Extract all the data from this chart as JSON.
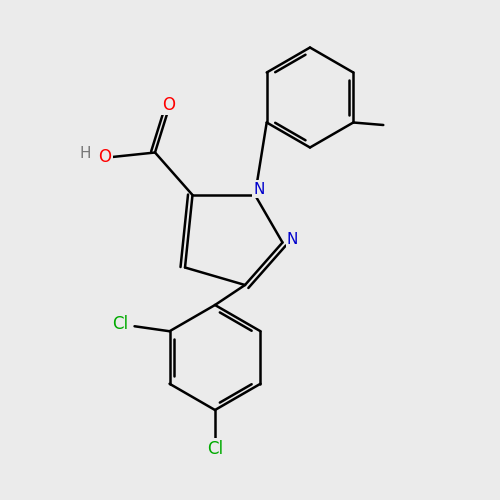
{
  "bg_color": "#ebebeb",
  "bond_color": "#000000",
  "bond_width": 1.8,
  "n_color": "#0000cc",
  "o_color": "#ff0000",
  "h_color": "#777777",
  "cl_color": "#00aa00",
  "font_size": 12,
  "fig_width": 5.0,
  "fig_height": 5.0,
  "xlim": [
    0,
    10
  ],
  "ylim": [
    0,
    10
  ]
}
